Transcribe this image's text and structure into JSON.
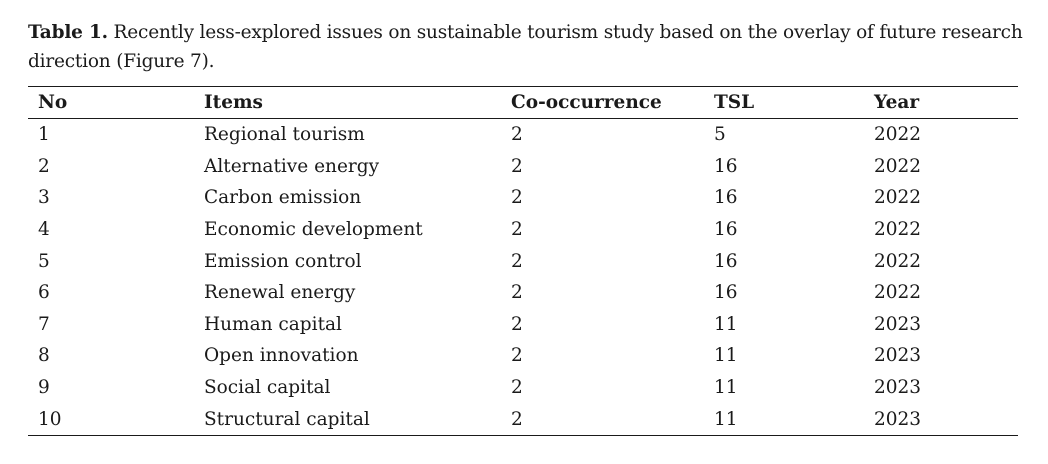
{
  "caption": {
    "label": "Table 1.",
    "text": " Recently less-explored issues on sustainable tourism study based on the overlay of future research direction (Figure 7)."
  },
  "table": {
    "headers": {
      "no": "No",
      "items": "Items",
      "co_occurrence": "Co-occurrence",
      "tsl": "TSL",
      "year": "Year"
    },
    "rows": [
      {
        "no": "1",
        "item": "Regional tourism",
        "co": "2",
        "tsl": "5",
        "year": "2022"
      },
      {
        "no": "2",
        "item": "Alternative energy",
        "co": "2",
        "tsl": "16",
        "year": "2022"
      },
      {
        "no": "3",
        "item": "Carbon emission",
        "co": "2",
        "tsl": "16",
        "year": "2022"
      },
      {
        "no": "4",
        "item": "Economic development",
        "co": "2",
        "tsl": "16",
        "year": "2022"
      },
      {
        "no": "5",
        "item": "Emission control",
        "co": "2",
        "tsl": "16",
        "year": "2022"
      },
      {
        "no": "6",
        "item": "Renewal energy",
        "co": "2",
        "tsl": "16",
        "year": "2022"
      },
      {
        "no": "7",
        "item": "Human capital",
        "co": "2",
        "tsl": "11",
        "year": "2023"
      },
      {
        "no": "8",
        "item": "Open innovation",
        "co": "2",
        "tsl": "11",
        "year": "2023"
      },
      {
        "no": "9",
        "item": "Social capital",
        "co": "2",
        "tsl": "11",
        "year": "2023"
      },
      {
        "no": "10",
        "item": "Structural capital",
        "co": "2",
        "tsl": "11",
        "year": "2023"
      }
    ]
  }
}
